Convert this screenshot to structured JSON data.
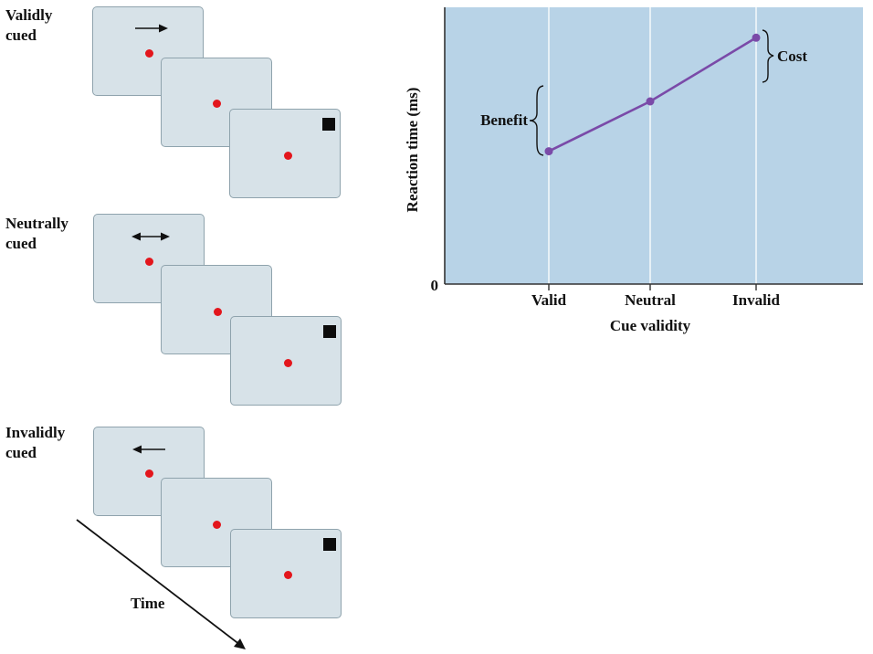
{
  "conditions": [
    {
      "label_line1": "Validly",
      "label_line2": "cued",
      "cue": "right-arrow"
    },
    {
      "label_line1": "Neutrally",
      "label_line2": "cued",
      "cue": "double-arrow"
    },
    {
      "label_line1": "Invalidly",
      "label_line2": "cued",
      "cue": "left-arrow"
    }
  ],
  "time_label": "Time",
  "colors": {
    "frame": "#d7e2e8",
    "fixation": "#e3161c",
    "plot_bg": "#b8d3e7",
    "line": "#7a4aa8"
  },
  "chart_data": {
    "type": "line",
    "categories": [
      "Valid",
      "Neutral",
      "Invalid"
    ],
    "values": [
      48,
      66,
      89
    ],
    "ylim": [
      0,
      100
    ],
    "xlabel": "Cue validity",
    "ylabel": "Reaction time (ms)",
    "y_tick_labels": [
      "0"
    ],
    "annotations": {
      "benefit": "Benefit",
      "cost": "Cost"
    }
  }
}
